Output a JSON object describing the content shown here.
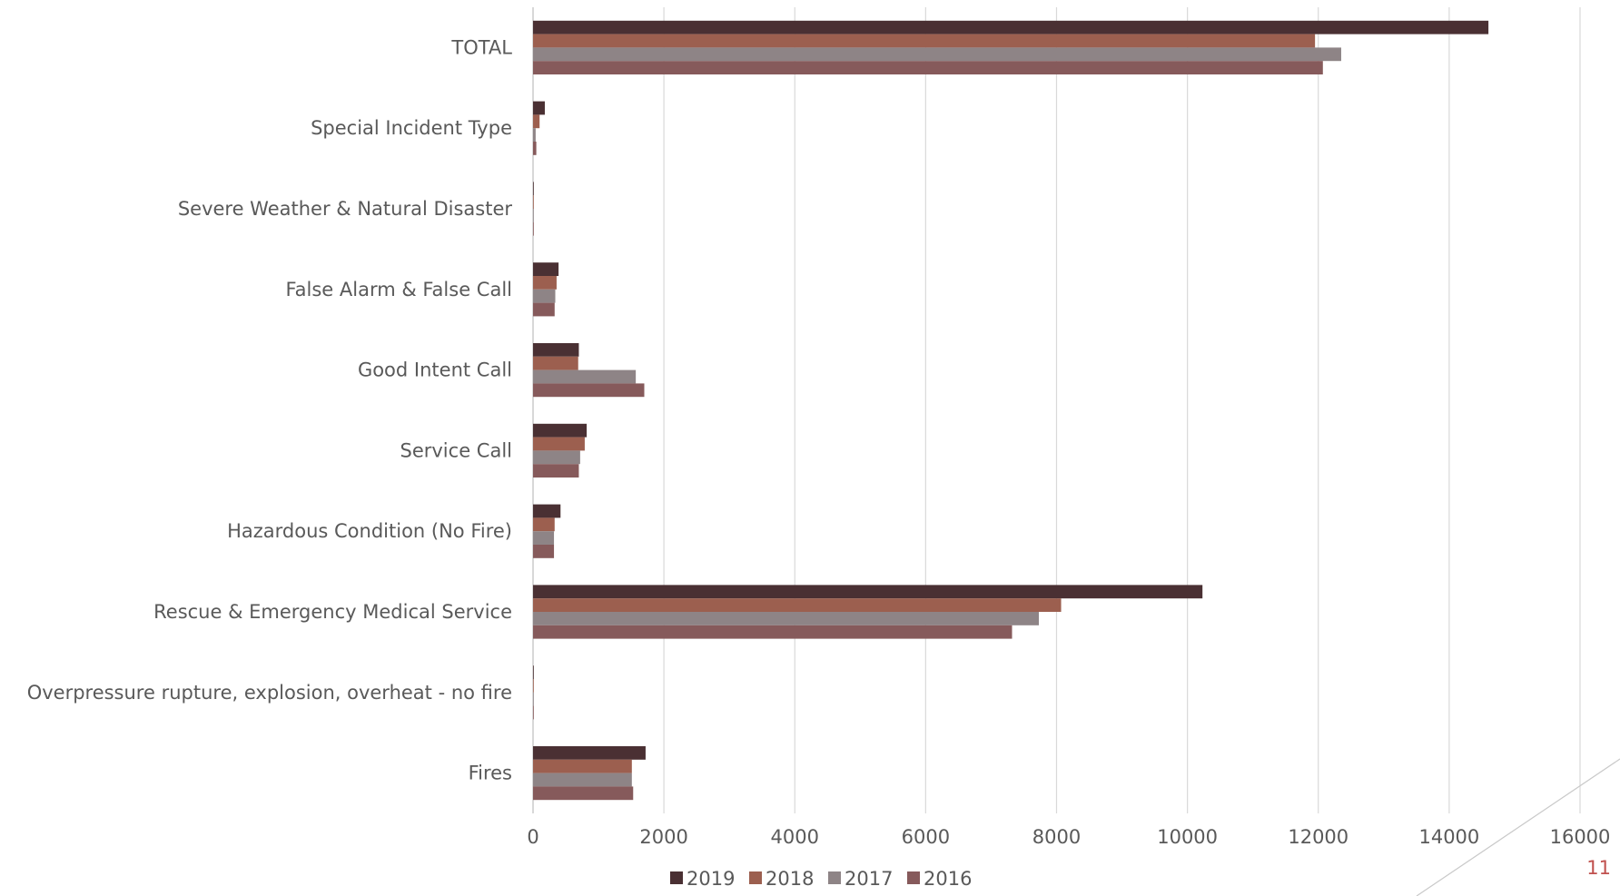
{
  "chart_data": {
    "type": "bar",
    "orientation": "horizontal",
    "categories": [
      "TOTAL",
      "Special Incident Type",
      "Severe Weather & Natural Disaster",
      "False Alarm & False Call",
      "Good Intent Call",
      "Service Call",
      "Hazardous Condition (No Fire)",
      "Rescue & Emergency Medical Service",
      "Overpressure rupture, explosion, overheat - no fire",
      "Fires"
    ],
    "series": [
      {
        "name": "2019",
        "color": "#4a3033",
        "values": [
          14600,
          180,
          5,
          390,
          700,
          820,
          420,
          10230,
          10,
          1720
        ]
      },
      {
        "name": "2018",
        "color": "#9c5f4f",
        "values": [
          11950,
          100,
          5,
          360,
          690,
          790,
          330,
          8070,
          10,
          1510
        ]
      },
      {
        "name": "2017",
        "color": "#8e8486",
        "values": [
          12350,
          40,
          5,
          340,
          1570,
          720,
          320,
          7730,
          10,
          1510
        ]
      },
      {
        "name": "2016",
        "color": "#865a5b",
        "values": [
          12070,
          50,
          5,
          330,
          1700,
          700,
          320,
          7320,
          10,
          1530
        ]
      }
    ],
    "xlim": [
      0,
      16000
    ],
    "xticks": [
      "0",
      "2000",
      "4000",
      "6000",
      "8000",
      "10000",
      "12000",
      "14000",
      "16000"
    ],
    "grid": "vertical",
    "legend_position": "bottom",
    "title": "",
    "xlabel": "",
    "ylabel": ""
  },
  "page_number": "11",
  "page_number_color": "#c0504d"
}
